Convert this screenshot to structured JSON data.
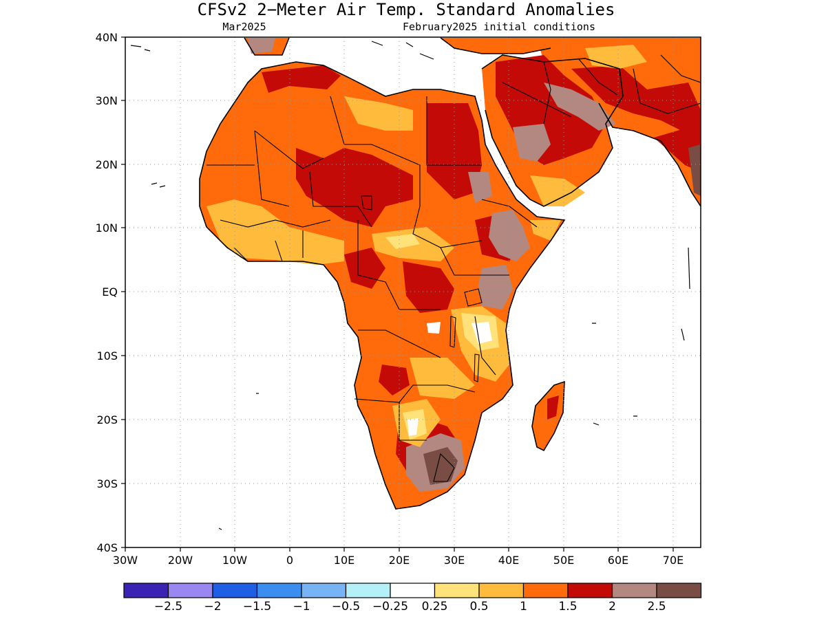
{
  "title": "CFSv2 2−Meter Air Temp. Standard Anomalies",
  "subtitle_left": "Mar2025",
  "subtitle_right": "February2025 initial conditions",
  "map": {
    "lon_range": [
      -30,
      75
    ],
    "lat_range": [
      -40,
      40
    ],
    "grid": true,
    "lat_ticks": [
      "40N",
      "30N",
      "20N",
      "10N",
      "EQ",
      "10S",
      "20S",
      "30S",
      "40S"
    ],
    "lon_ticks": [
      "30W",
      "20W",
      "10W",
      "0",
      "10E",
      "20E",
      "30E",
      "40E",
      "50E",
      "60E",
      "70E"
    ]
  },
  "colorbar": {
    "colors": [
      "#3a22b4",
      "#9b87f2",
      "#1f5fe6",
      "#3b8ef0",
      "#78b4f5",
      "#b4f0f8",
      "#ffffff",
      "#ffe27a",
      "#ffbb3c",
      "#ff6a0a",
      "#c40a06",
      "#b38880",
      "#7a4d44"
    ],
    "labels": [
      "−2.5",
      "−2",
      "−1.5",
      "−1",
      "−0.5",
      "−0.25",
      "0.25",
      "0.5",
      "1",
      "1.5",
      "2",
      "2.5"
    ]
  }
}
